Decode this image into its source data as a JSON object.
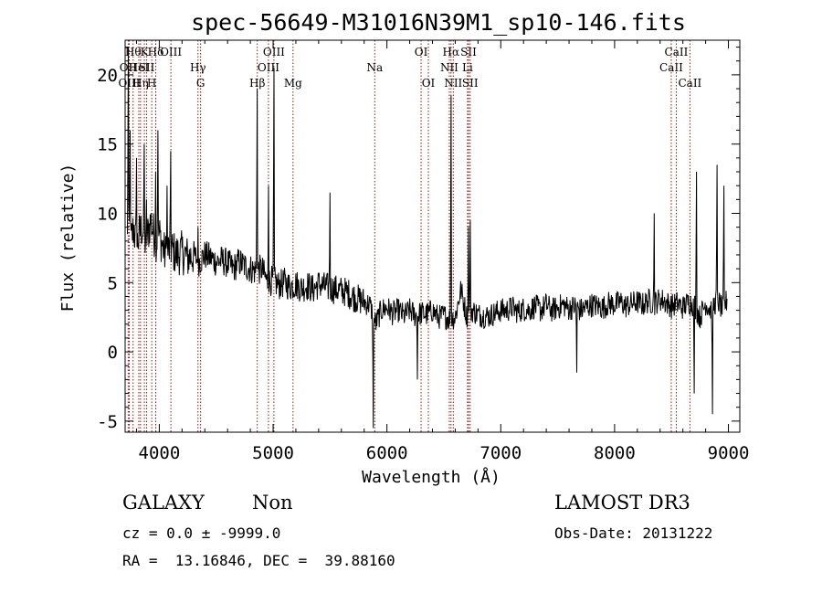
{
  "chart_data": {
    "type": "line",
    "title": "spec-56649-M31016N39M1_sp10-146.fits",
    "xlabel": "Wavelength (Å)",
    "ylabel": "Flux (relative)",
    "xlim": [
      3700,
      9100
    ],
    "ylim": [
      -5.8,
      22.5
    ],
    "x_ticks": [
      4000,
      5000,
      6000,
      7000,
      8000,
      9000
    ],
    "y_ticks": [
      -5,
      0,
      5,
      10,
      15,
      20
    ],
    "grid": false,
    "line_color": "#000000",
    "marker_color": "#8b1a1a",
    "spectrum": {
      "x": [
        3700,
        3725,
        3750,
        3775,
        3800,
        3825,
        3850,
        3875,
        3900,
        3925,
        3950,
        3975,
        4000,
        4050,
        4100,
        4150,
        4200,
        4250,
        4300,
        4350,
        4400,
        4450,
        4500,
        4550,
        4600,
        4650,
        4700,
        4750,
        4800,
        4850,
        4900,
        4950,
        5000,
        5050,
        5100,
        5150,
        5200,
        5250,
        5300,
        5350,
        5400,
        5450,
        5500,
        5550,
        5600,
        5650,
        5700,
        5750,
        5800,
        5850,
        5900,
        5950,
        6000,
        6050,
        6100,
        6150,
        6200,
        6250,
        6300,
        6350,
        6400,
        6450,
        6500,
        6550,
        6600,
        6650,
        6700,
        6750,
        6800,
        6850,
        6900,
        6950,
        7000,
        7050,
        7100,
        7150,
        7200,
        7250,
        7300,
        7350,
        7400,
        7450,
        7500,
        7550,
        7600,
        7650,
        7700,
        7750,
        7800,
        7850,
        7900,
        7950,
        8000,
        8050,
        8100,
        8150,
        8200,
        8250,
        8300,
        8350,
        8400,
        8450,
        8500,
        8550,
        8600,
        8650,
        8700,
        8750,
        8800,
        8850,
        8900,
        8950,
        9000
      ],
      "y": [
        2.0,
        9.5,
        8.0,
        9.0,
        7.5,
        8.5,
        9.0,
        8.0,
        8.5,
        9.5,
        8.5,
        8.0,
        8.5,
        7.0,
        7.5,
        7.0,
        7.2,
        6.8,
        7.0,
        6.5,
        7.0,
        6.8,
        6.5,
        6.6,
        6.4,
        6.0,
        6.5,
        6.2,
        6.0,
        5.8,
        6.0,
        5.0,
        5.2,
        4.8,
        5.0,
        4.7,
        4.9,
        4.6,
        4.8,
        4.5,
        4.9,
        4.7,
        4.6,
        4.5,
        4.4,
        4.3,
        4.0,
        3.8,
        3.6,
        3.4,
        2.0,
        3.0,
        3.2,
        2.8,
        3.0,
        2.6,
        3.0,
        2.6,
        2.8,
        2.7,
        3.0,
        2.5,
        2.6,
        2.4,
        2.5,
        4.5,
        2.6,
        3.0,
        2.7,
        2.6,
        2.6,
        2.8,
        3.0,
        3.0,
        3.2,
        2.9,
        3.1,
        3.0,
        3.3,
        3.0,
        3.4,
        3.0,
        3.2,
        3.4,
        3.1,
        3.3,
        3.0,
        3.2,
        3.4,
        3.3,
        3.2,
        3.5,
        3.4,
        3.6,
        3.3,
        3.5,
        3.6,
        3.4,
        3.7,
        3.5,
        3.8,
        3.6,
        3.3,
        3.5,
        3.2,
        3.6,
        3.4,
        2.5,
        3.5,
        3.0,
        3.8,
        3.0,
        4.0
      ]
    },
    "spikes": [
      {
        "x": 3728,
        "y": 22.0
      },
      {
        "x": 3745,
        "y": 16.0
      },
      {
        "x": 3800,
        "y": 14.0
      },
      {
        "x": 3870,
        "y": 15.0
      },
      {
        "x": 3890,
        "y": 11.0
      },
      {
        "x": 3970,
        "y": 13.0
      },
      {
        "x": 3990,
        "y": 16.0
      },
      {
        "x": 4070,
        "y": 12.0
      },
      {
        "x": 4102,
        "y": 14.5
      },
      {
        "x": 4340,
        "y": 9.0
      },
      {
        "x": 4861,
        "y": 19.0
      },
      {
        "x": 4959,
        "y": 12.0
      },
      {
        "x": 5007,
        "y": 20.5
      },
      {
        "x": 5500,
        "y": 11.5
      },
      {
        "x": 6563,
        "y": 18.5
      },
      {
        "x": 6717,
        "y": 9.0
      },
      {
        "x": 6731,
        "y": 9.5
      },
      {
        "x": 8350,
        "y": 10.0
      },
      {
        "x": 8720,
        "y": 13.0
      },
      {
        "x": 8900,
        "y": 13.5
      },
      {
        "x": 8960,
        "y": 12.0
      }
    ],
    "dips": [
      {
        "x": 5880,
        "y": -5.5
      },
      {
        "x": 6270,
        "y": -2.0
      },
      {
        "x": 7670,
        "y": -1.5
      },
      {
        "x": 8700,
        "y": -3.0
      },
      {
        "x": 8860,
        "y": -4.5
      }
    ],
    "lines": [
      {
        "x": 3727,
        "label": "OII",
        "row": 1
      },
      {
        "x": 3736,
        "label": "OIII",
        "row": 2
      },
      {
        "x": 3770,
        "label": "Hθ",
        "row": 0
      },
      {
        "x": 3820,
        "label": "HeI",
        "row": 1
      },
      {
        "x": 3835,
        "label": "Hη",
        "row": 2
      },
      {
        "x": 3869,
        "label": "K",
        "row": 0
      },
      {
        "x": 3889,
        "label": "SII",
        "row": 1
      },
      {
        "x": 3934,
        "label": "H",
        "row": 2
      },
      {
        "x": 3969,
        "label": "Hδ",
        "row": 0
      },
      {
        "x": 4102,
        "label": "OIII",
        "row": 0
      },
      {
        "x": 4340,
        "label": "Hγ",
        "row": 1
      },
      {
        "x": 4363,
        "label": "G",
        "row": 2
      },
      {
        "x": 4861,
        "label": "Hβ",
        "row": 2
      },
      {
        "x": 4959,
        "label": "OIII",
        "row": 1
      },
      {
        "x": 5007,
        "label": "OIII",
        "row": 0
      },
      {
        "x": 5175,
        "label": "Mg",
        "row": 2
      },
      {
        "x": 5893,
        "label": "Na",
        "row": 1
      },
      {
        "x": 6300,
        "label": "OI",
        "row": 0
      },
      {
        "x": 6364,
        "label": "OI",
        "row": 2
      },
      {
        "x": 6548,
        "label": "NII",
        "row": 1
      },
      {
        "x": 6563,
        "label": "Hα",
        "row": 0
      },
      {
        "x": 6583,
        "label": "NII",
        "row": 2
      },
      {
        "x": 6708,
        "label": "Li",
        "row": 1
      },
      {
        "x": 6717,
        "label": "SII",
        "row": 0
      },
      {
        "x": 6731,
        "label": "SII",
        "row": 2
      },
      {
        "x": 8498,
        "label": "CaII",
        "row": 1
      },
      {
        "x": 8542,
        "label": "CaII",
        "row": 0
      },
      {
        "x": 8662,
        "label": "CaII",
        "row": 2
      }
    ]
  },
  "info": {
    "class": "GALAXY",
    "subclass": "Non",
    "survey": "LAMOST DR3",
    "cz": "cz = 0.0 ± -9999.0",
    "obs_date": "Obs-Date: 20131222",
    "coords": "RA =  13.16846, DEC =  39.88160"
  }
}
